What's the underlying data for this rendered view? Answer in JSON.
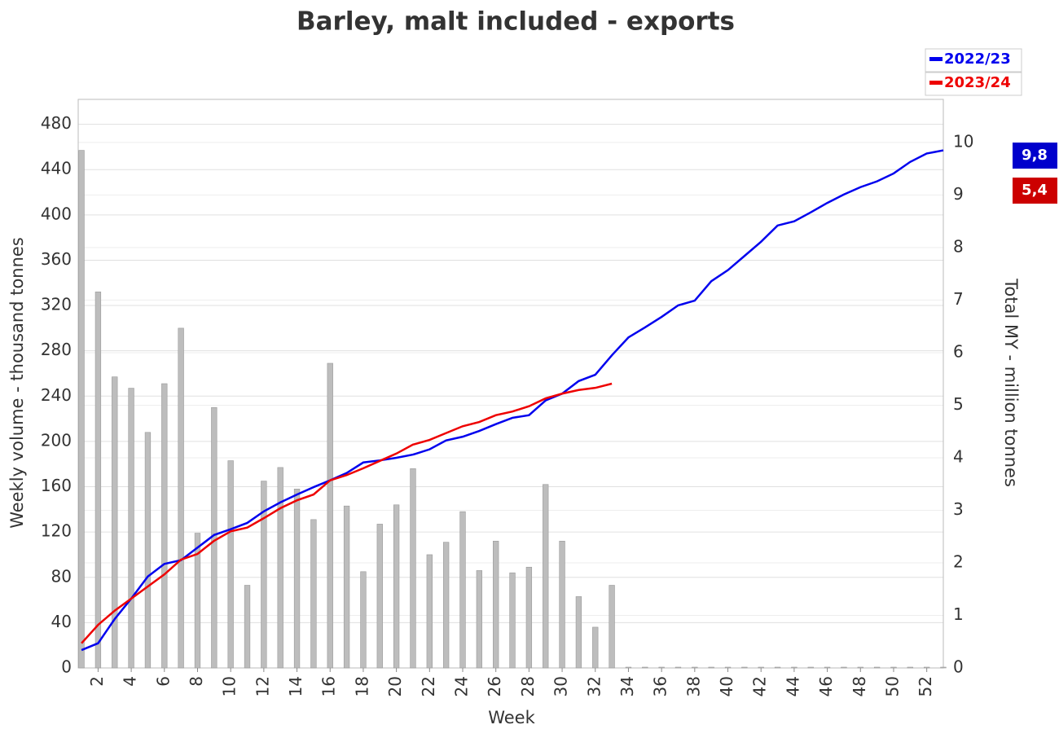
{
  "chart_data": {
    "type": "bar_line",
    "title": "Barley, malt included - exports",
    "xlabel": "Week",
    "ylabel": "Weekly volume - thousand tonnes",
    "y2label": "Total MY - million tonnes",
    "x": [
      1,
      2,
      3,
      4,
      5,
      6,
      7,
      8,
      9,
      10,
      11,
      12,
      13,
      14,
      15,
      16,
      17,
      18,
      19,
      20,
      21,
      22,
      23,
      24,
      25,
      26,
      27,
      28,
      29,
      30,
      31,
      32,
      33,
      34,
      35,
      36,
      37,
      38,
      39,
      40,
      41,
      42,
      43,
      44,
      45,
      46,
      47,
      48,
      49,
      50,
      51,
      52,
      53
    ],
    "xlim": [
      0.8,
      53
    ],
    "xticks": [
      2,
      4,
      6,
      8,
      10,
      12,
      14,
      16,
      18,
      20,
      22,
      24,
      26,
      28,
      30,
      32,
      34,
      36,
      38,
      40,
      42,
      44,
      46,
      48,
      50,
      52
    ],
    "ylim": [
      0,
      502
    ],
    "yticks": [
      0,
      40,
      80,
      120,
      160,
      200,
      240,
      280,
      320,
      360,
      400,
      440,
      480
    ],
    "y2lim": [
      0,
      10.82
    ],
    "y2ticks": [
      0,
      1,
      2,
      3,
      4,
      5,
      6,
      7,
      8,
      9,
      10
    ],
    "bar_color": "#bdbdbd",
    "bars": [
      457,
      332,
      257,
      247,
      208,
      251,
      300,
      119,
      230,
      183,
      73,
      165,
      177,
      158,
      131,
      269,
      143,
      85,
      127,
      144,
      176,
      100,
      111,
      138,
      86,
      112,
      84,
      89,
      162,
      112,
      63,
      36,
      73,
      0,
      0,
      0,
      0,
      0,
      0,
      0,
      0,
      0,
      0,
      0,
      0,
      0,
      0,
      0,
      0,
      0,
      0,
      0,
      0
    ],
    "series": [
      {
        "name": "2022/23",
        "color": "#0000ee",
        "axis": "y2",
        "values": [
          0.34,
          0.47,
          0.93,
          1.32,
          1.74,
          1.98,
          2.05,
          2.29,
          2.53,
          2.64,
          2.76,
          2.98,
          3.15,
          3.3,
          3.44,
          3.57,
          3.71,
          3.91,
          3.95,
          4.0,
          4.06,
          4.16,
          4.33,
          4.4,
          4.51,
          4.64,
          4.76,
          4.81,
          5.09,
          5.22,
          5.46,
          5.58,
          5.95,
          6.29,
          6.48,
          6.68,
          6.9,
          6.99,
          7.36,
          7.57,
          7.84,
          8.11,
          8.42,
          8.5,
          8.67,
          8.85,
          9.01,
          9.15,
          9.26,
          9.41,
          9.63,
          9.79,
          9.85
        ]
      },
      {
        "name": "2023/24",
        "color": "#ee0000",
        "axis": "y2",
        "values": [
          0.47,
          0.82,
          1.09,
          1.32,
          1.55,
          1.78,
          2.06,
          2.17,
          2.42,
          2.6,
          2.67,
          2.85,
          3.04,
          3.19,
          3.3,
          3.57,
          3.67,
          3.8,
          3.94,
          4.08,
          4.25,
          4.34,
          4.47,
          4.6,
          4.68,
          4.81,
          4.88,
          4.98,
          5.13,
          5.22,
          5.29,
          5.33,
          5.41,
          null,
          null,
          null,
          null,
          null,
          null,
          null,
          null,
          null,
          null,
          null,
          null,
          null,
          null,
          null,
          null,
          null,
          null,
          null,
          null
        ]
      }
    ],
    "annotations": [
      {
        "text": "9,8",
        "color": "#0000cc"
      },
      {
        "text": "5,4",
        "color": "#cc0000"
      }
    ],
    "grid": true
  }
}
